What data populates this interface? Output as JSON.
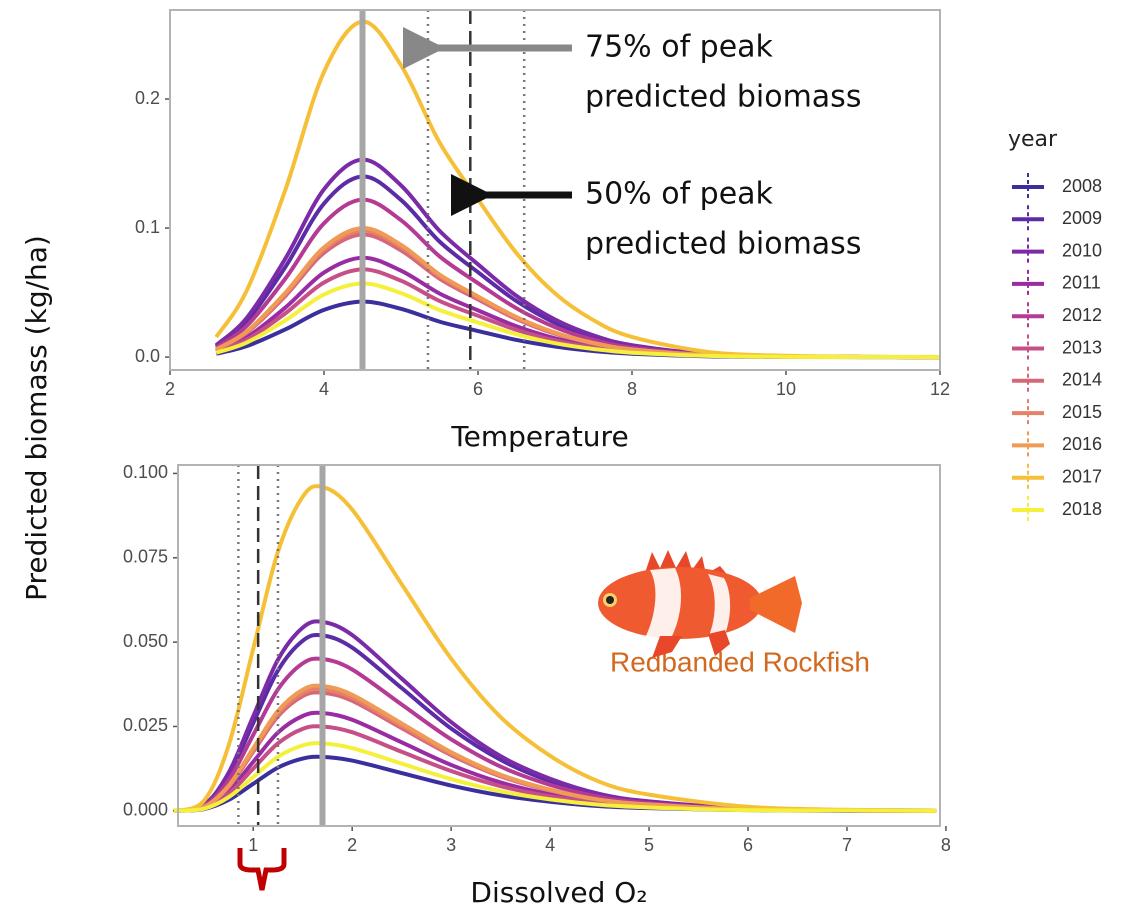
{
  "chart_data": [
    {
      "type": "line",
      "y_label": "Predicted biomass (kg/ha)",
      "x_label": "Temperature",
      "legend_title": "year",
      "x": [
        2.6,
        3,
        3.5,
        4,
        4.5,
        5,
        5.5,
        6,
        6.5,
        7,
        7.5,
        8,
        9,
        10,
        11,
        12
      ],
      "xlim": [
        2,
        12
      ],
      "ylim": [
        -0.01,
        0.269
      ],
      "xticks": [
        2,
        4,
        6,
        8,
        10,
        12
      ],
      "yticks": [
        {
          "value": 0,
          "label": "0.0"
        },
        0.1,
        0.2
      ],
      "reference_lines": [
        {
          "value": 4.5,
          "style": "solid"
        },
        {
          "value": 5.35,
          "style": "dotted"
        },
        {
          "value": 5.9,
          "style": "dashed"
        },
        {
          "value": 6.6,
          "style": "dotted"
        }
      ],
      "annotations": [
        {
          "text": [
            "75% of peak",
            "predicted biomass"
          ]
        },
        {
          "text": [
            "50% of peak",
            "predicted biomass"
          ]
        }
      ],
      "series": [
        {
          "name": "2008",
          "color": "#3b2f9e",
          "values": [
            0.0026,
            0.0086,
            0.0215,
            0.0366,
            0.043,
            0.0374,
            0.0275,
            0.0202,
            0.0133,
            0.0082,
            0.0047,
            0.0026,
            0.0006,
            0.0002,
            0,
            0
          ]
        },
        {
          "name": "2009",
          "color": "#5a2ca6",
          "values": [
            0.0084,
            0.028,
            0.07,
            0.119,
            0.14,
            0.1218,
            0.0896,
            0.0658,
            0.0434,
            0.0266,
            0.0154,
            0.0084,
            0.0021,
            0.0006,
            0.0001,
            0
          ]
        },
        {
          "name": "2010",
          "color": "#7b2aa8",
          "values": [
            0.0092,
            0.0306,
            0.0765,
            0.1301,
            0.153,
            0.1331,
            0.0979,
            0.0719,
            0.0474,
            0.0291,
            0.0168,
            0.0092,
            0.0023,
            0.0006,
            0.0002,
            0
          ]
        },
        {
          "name": "2011",
          "color": "#9a2ca3",
          "values": [
            0.0046,
            0.0154,
            0.0385,
            0.0655,
            0.077,
            0.067,
            0.0493,
            0.0362,
            0.0239,
            0.0146,
            0.0085,
            0.0046,
            0.0012,
            0.0003,
            0.0001,
            0
          ]
        },
        {
          "name": "2012",
          "color": "#b43a94",
          "values": [
            0.0073,
            0.0244,
            0.061,
            0.1037,
            0.122,
            0.1061,
            0.0781,
            0.0573,
            0.0378,
            0.0232,
            0.0134,
            0.0073,
            0.0018,
            0.0005,
            0.0001,
            0
          ]
        },
        {
          "name": "2013",
          "color": "#c74f87",
          "values": [
            0.0041,
            0.0136,
            0.034,
            0.0578,
            0.068,
            0.0592,
            0.0435,
            0.032,
            0.0211,
            0.0129,
            0.0075,
            0.0041,
            0.001,
            0.0003,
            0.0001,
            0
          ]
        },
        {
          "name": "2014",
          "color": "#d66779",
          "values": [
            0.0057,
            0.019,
            0.0475,
            0.0808,
            0.095,
            0.0827,
            0.0608,
            0.0447,
            0.0295,
            0.0181,
            0.0105,
            0.0057,
            0.0014,
            0.0004,
            0.0001,
            0
          ]
        },
        {
          "name": "2015",
          "color": "#e5806b",
          "values": [
            0.0059,
            0.0196,
            0.049,
            0.0833,
            0.098,
            0.0853,
            0.0627,
            0.0461,
            0.0304,
            0.0186,
            0.0108,
            0.0059,
            0.0015,
            0.0004,
            0.0001,
            0
          ]
        },
        {
          "name": "2016",
          "color": "#f09b55",
          "values": [
            0.006,
            0.02,
            0.05,
            0.085,
            0.1,
            0.087,
            0.064,
            0.047,
            0.031,
            0.019,
            0.011,
            0.006,
            0.0015,
            0.0004,
            0.0001,
            0
          ]
        },
        {
          "name": "2017",
          "color": "#f5c038",
          "values": [
            0.0156,
            0.052,
            0.13,
            0.221,
            0.26,
            0.2262,
            0.1664,
            0.1222,
            0.0806,
            0.0494,
            0.0286,
            0.0156,
            0.0039,
            0.001,
            0.0003,
            0
          ]
        },
        {
          "name": "2018",
          "color": "#f4f03c",
          "values": [
            0.0034,
            0.0114,
            0.0285,
            0.0485,
            0.057,
            0.0496,
            0.0365,
            0.0268,
            0.0177,
            0.0108,
            0.0063,
            0.0034,
            0.0009,
            0.0002,
            0.0001,
            0
          ]
        }
      ]
    },
    {
      "type": "line",
      "x_label": "Dissolved O₂",
      "species": "Redbanded Rockfish",
      "x": [
        0.2,
        0.5,
        0.75,
        1,
        1.25,
        1.5,
        1.7,
        2,
        2.5,
        3,
        3.5,
        4,
        4.5,
        5,
        6,
        7,
        7.9
      ],
      "xlim": [
        0.24,
        7.94
      ],
      "ylim": [
        -0.0045,
        0.1025
      ],
      "xticks": [
        1,
        2,
        3,
        4,
        5,
        6,
        7,
        8
      ],
      "yticks": [
        {
          "value": 0,
          "label": "0.000"
        },
        {
          "value": 0.025,
          "label": "0.025"
        },
        {
          "value": 0.05,
          "label": "0.050"
        },
        {
          "value": 0.075,
          "label": "0.075"
        },
        {
          "value": 0.1,
          "label": "0.100"
        }
      ],
      "reference_lines": [
        {
          "value": 0.85,
          "style": "dotted"
        },
        {
          "value": 1.05,
          "style": "dashed"
        },
        {
          "value": 1.25,
          "style": "dotted"
        },
        {
          "value": 1.7,
          "style": "solid"
        }
      ],
      "series": [
        {
          "color": "#3b2f9e",
          "values": [
            0,
            0.0005,
            0.0032,
            0.008,
            0.0128,
            0.0155,
            0.016,
            0.0149,
            0.0112,
            0.0075,
            0.0046,
            0.0027,
            0.0014,
            0.0008,
            0.0002,
            0,
            0
          ]
        },
        {
          "color": "#5a2ca6",
          "values": [
            0,
            0.0016,
            0.0104,
            0.026,
            0.0416,
            0.0504,
            0.052,
            0.0484,
            0.0364,
            0.0244,
            0.0151,
            0.0088,
            0.0047,
            0.0026,
            0.0006,
            0.0002,
            0.0001
          ]
        },
        {
          "color": "#7b2aa8",
          "values": [
            0,
            0.0017,
            0.0112,
            0.028,
            0.0448,
            0.0543,
            0.056,
            0.0521,
            0.0392,
            0.0263,
            0.0162,
            0.0095,
            0.005,
            0.0028,
            0.0007,
            0.0002,
            0.0001
          ]
        },
        {
          "color": "#9a2ca3",
          "values": [
            0,
            0.0009,
            0.0058,
            0.0145,
            0.0232,
            0.0281,
            0.029,
            0.027,
            0.0203,
            0.0136,
            0.0084,
            0.0049,
            0.0026,
            0.0015,
            0.0003,
            0.0001,
            0
          ]
        },
        {
          "color": "#b43a94",
          "values": [
            0,
            0.0014,
            0.009,
            0.0225,
            0.036,
            0.0437,
            0.045,
            0.0419,
            0.0315,
            0.0212,
            0.0131,
            0.0077,
            0.0041,
            0.0023,
            0.0005,
            0.0001,
            0
          ]
        },
        {
          "color": "#c74f87",
          "values": [
            0,
            0.0008,
            0.005,
            0.0125,
            0.02,
            0.0243,
            0.025,
            0.0233,
            0.0175,
            0.0118,
            0.0073,
            0.0043,
            0.0023,
            0.0013,
            0.0003,
            0.0001,
            0
          ]
        },
        {
          "color": "#d66779",
          "values": [
            0,
            0.0011,
            0.007,
            0.0175,
            0.028,
            0.034,
            0.035,
            0.0326,
            0.0245,
            0.0165,
            0.0102,
            0.006,
            0.0032,
            0.0018,
            0.0004,
            0.0001,
            0
          ]
        },
        {
          "color": "#e5806b",
          "values": [
            0,
            0.0011,
            0.0072,
            0.018,
            0.0288,
            0.0349,
            0.036,
            0.0335,
            0.0252,
            0.0169,
            0.0104,
            0.0061,
            0.0032,
            0.0018,
            0.0004,
            0.0001,
            0
          ]
        },
        {
          "color": "#f09b55",
          "values": [
            0,
            0.0011,
            0.0074,
            0.0185,
            0.0296,
            0.0359,
            0.037,
            0.0344,
            0.0259,
            0.0174,
            0.0107,
            0.0063,
            0.0033,
            0.0019,
            0.0004,
            0.0001,
            0
          ]
        },
        {
          "color": "#f5c038",
          "values": [
            0,
            0.0029,
            0.0192,
            0.048,
            0.0768,
            0.0931,
            0.096,
            0.0893,
            0.0672,
            0.0451,
            0.0278,
            0.0163,
            0.0086,
            0.0048,
            0.0012,
            0.0003,
            0.0001
          ]
        },
        {
          "color": "#f4f03c",
          "values": [
            0,
            0.0006,
            0.004,
            0.01,
            0.016,
            0.0194,
            0.02,
            0.0186,
            0.014,
            0.0094,
            0.0058,
            0.0034,
            0.0018,
            0.001,
            0.0002,
            0.0001,
            0
          ]
        }
      ]
    }
  ]
}
